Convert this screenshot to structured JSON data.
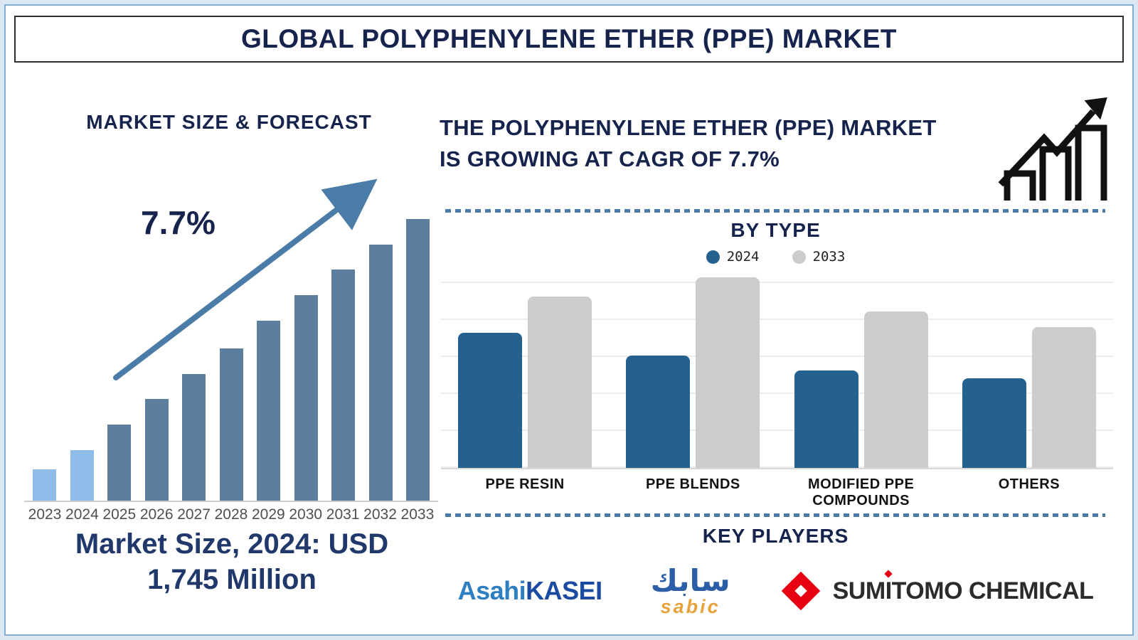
{
  "page": {
    "title": "GLOBAL POLYPHENYLENE ETHER (PPE) MARKET"
  },
  "colors": {
    "navy_text": "#15234d",
    "steel_blue": "#4b7ca8",
    "baseline_gray": "#cfcfcf",
    "year_label_gray": "#4f4f4f",
    "category_label_black": "#111111",
    "frame_border_blue": "#84aed1",
    "page_background_blue": "#dbe8f4",
    "forecast_bar_highlight": "#8fbce8",
    "forecast_bar_default": "#5d7f9e",
    "type_bar_2024_blue": "#25618f",
    "type_bar_2033_gray": "#cccccc",
    "asahi_light_blue": "#2e7fc2",
    "asahi_dark_blue": "#1a4ba0",
    "sabic_blue": "#2b5ea7",
    "sabic_orange": "#e8a23c",
    "sumitomo_red": "#e60012",
    "sumitomo_text": "#2b2b2b",
    "icon_black": "#111111"
  },
  "left_panel": {
    "heading": "MARKET SIZE & FORECAST",
    "cagr_label": "7.7%",
    "caption_line1": "Market Size, 2024: USD",
    "caption_line2": "1,745 Million"
  },
  "right_panel": {
    "headline_line1": "THE POLYPHENYLENE ETHER (PPE) MARKET",
    "headline_line2": "IS GROWING AT CAGR OF 7.7%",
    "by_type_title": "BY TYPE",
    "key_players_title": "KEY PLAYERS",
    "logos": {
      "asahi_part1": "Asahi",
      "asahi_part2": "KASEI",
      "sabic_arabic": "سابك",
      "sabic_latin": "sabic",
      "sumitomo_pre": "SUM",
      "sumitomo_i": "I",
      "sumitomo_post": "TOMO CHEMICAL"
    }
  },
  "chart_data": [
    {
      "type": "bar",
      "title": "MARKET SIZE & FORECAST",
      "categories": [
        "2023",
        "2024",
        "2025",
        "2026",
        "2027",
        "2028",
        "2029",
        "2030",
        "2031",
        "2032",
        "2033"
      ],
      "values_relative_pct": [
        11,
        18,
        27,
        36,
        45,
        54,
        64,
        73,
        82,
        91,
        100
      ],
      "value_axis_shown": false,
      "grid": false,
      "highlight_categories": [
        "2023",
        "2024"
      ],
      "bar_color_highlight": "#8fbce8",
      "bar_color_default": "#5d7f9e",
      "annotations": {
        "cagr": "7.7%",
        "market_size_2024": "Market Size, 2024: USD 1,745 Million"
      }
    },
    {
      "type": "bar",
      "title": "BY TYPE",
      "categories": [
        "PPE RESIN",
        "PPE BLENDS",
        "MODIFIED PPE COMPOUNDS",
        "OTHERS"
      ],
      "series": [
        {
          "name": "2024",
          "color": "#25618f",
          "values_relative_pct": [
            71,
            59,
            51,
            47
          ]
        },
        {
          "name": "2033",
          "color": "#cccccc",
          "values_relative_pct": [
            90,
            100,
            82,
            74
          ]
        }
      ],
      "value_axis_shown": false,
      "grid": true,
      "legend_position": "top"
    }
  ]
}
